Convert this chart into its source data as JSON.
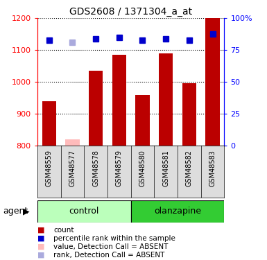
{
  "title": "GDS2608 / 1371304_a_at",
  "samples": [
    "GSM48559",
    "GSM48577",
    "GSM48578",
    "GSM48579",
    "GSM48580",
    "GSM48581",
    "GSM48582",
    "GSM48583"
  ],
  "bar_values": [
    940,
    820,
    1035,
    1085,
    960,
    1090,
    995,
    1200
  ],
  "bar_is_absent": [
    false,
    true,
    false,
    false,
    false,
    false,
    false,
    false
  ],
  "percentile_values": [
    1130,
    1125,
    1135,
    1140,
    1130,
    1135,
    1130,
    1150
  ],
  "percentile_is_absent": [
    false,
    true,
    false,
    false,
    false,
    false,
    false,
    false
  ],
  "groups": [
    {
      "label": "control",
      "start": 0,
      "end": 4,
      "color": "#bbffbb"
    },
    {
      "label": "olanzapine",
      "start": 4,
      "end": 8,
      "color": "#33cc33"
    }
  ],
  "agent_label": "agent",
  "ymin": 800,
  "ymax": 1200,
  "yticks": [
    800,
    900,
    1000,
    1100,
    1200
  ],
  "y2min": 0,
  "y2max": 100,
  "y2ticks": [
    0,
    25,
    50,
    75,
    100
  ],
  "y2labels": [
    "0",
    "25",
    "50",
    "75",
    "100%"
  ],
  "bar_color_present": "#bb0000",
  "bar_color_absent": "#ffbbbb",
  "dot_color_present": "#0000cc",
  "dot_color_absent": "#aaaadd",
  "legend_items": [
    {
      "label": "count",
      "color": "#bb0000"
    },
    {
      "label": "percentile rank within the sample",
      "color": "#0000cc"
    },
    {
      "label": "value, Detection Call = ABSENT",
      "color": "#ffbbbb"
    },
    {
      "label": "rank, Detection Call = ABSENT",
      "color": "#aaaadd"
    }
  ],
  "figwidth": 3.85,
  "figheight": 3.75,
  "dpi": 100
}
